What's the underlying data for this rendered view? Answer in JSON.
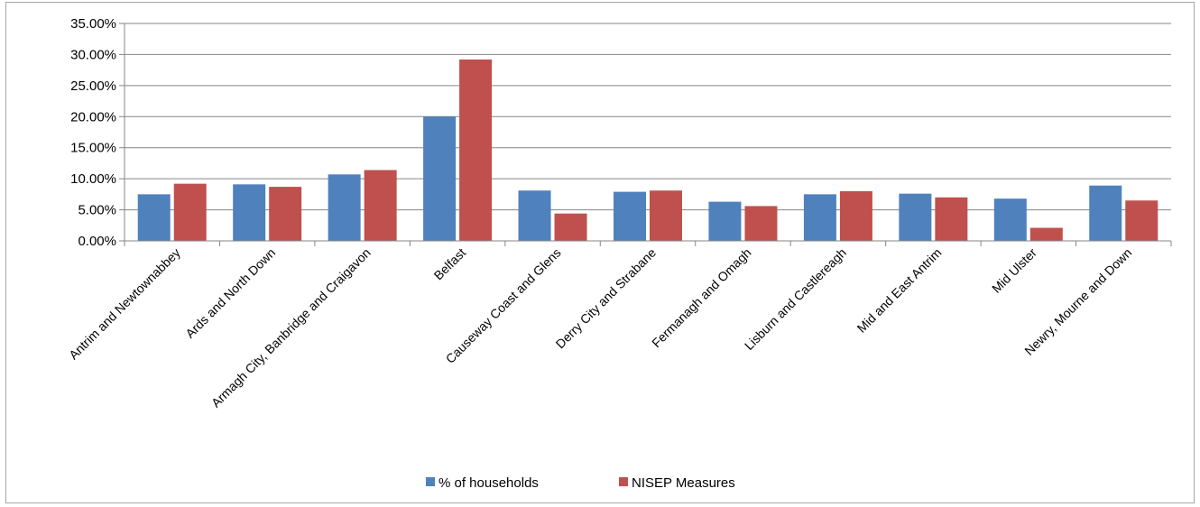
{
  "chart_data": {
    "type": "bar",
    "title": "",
    "xlabel": "",
    "ylabel": "",
    "ylim": [
      0,
      35
    ],
    "y_ticks": [
      "0.00%",
      "5.00%",
      "10.00%",
      "15.00%",
      "20.00%",
      "25.00%",
      "30.00%",
      "35.00%"
    ],
    "grid": true,
    "legend_position": "bottom",
    "categories": [
      "Antrim and Newtownabbey",
      "Ards and North Down",
      "Armagh City, Banbridge and Craigavon",
      "Belfast",
      "Causeway Coast and Glens",
      "Derry City and Strabane",
      "Fermanagh and Omagh",
      "Lisburn and Castlereagh",
      "Mid and East Antrim",
      "Mid Ulster",
      "Newry, Mourne and Down"
    ],
    "series": [
      {
        "name": "% of households",
        "color": "#4f81bd",
        "values": [
          7.5,
          9.1,
          10.7,
          20.0,
          8.1,
          7.9,
          6.3,
          7.5,
          7.6,
          6.8,
          8.9
        ]
      },
      {
        "name": "NISEP Measures",
        "color": "#c0504d",
        "values": [
          9.2,
          8.7,
          11.4,
          29.2,
          4.4,
          8.1,
          5.6,
          8.0,
          7.0,
          2.1,
          6.5
        ]
      }
    ]
  }
}
